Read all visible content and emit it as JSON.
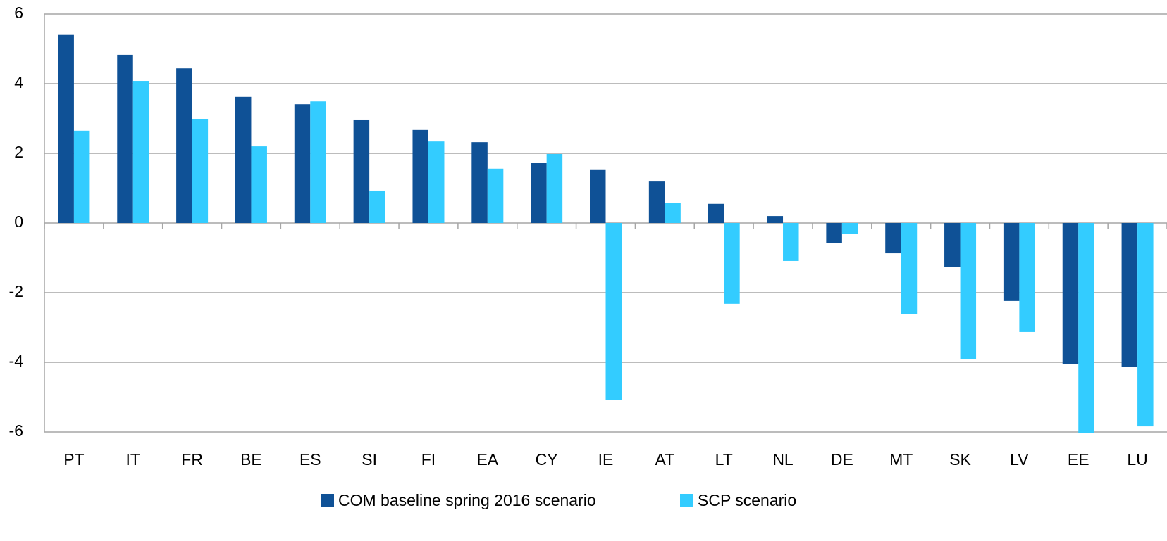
{
  "chart_data": {
    "type": "bar",
    "categories": [
      "PT",
      "IT",
      "FR",
      "BE",
      "ES",
      "SI",
      "FI",
      "EA",
      "CY",
      "IE",
      "AT",
      "LT",
      "NL",
      "DE",
      "MT",
      "SK",
      "LV",
      "EE",
      "LU"
    ],
    "series": [
      {
        "name": "COM baseline spring 2016 scenario",
        "color": "#0f5196",
        "values": [
          5.4,
          4.83,
          4.44,
          3.62,
          3.41,
          2.97,
          2.67,
          2.32,
          1.72,
          1.54,
          1.21,
          0.55,
          0.2,
          -0.57,
          -0.87,
          -1.27,
          -2.24,
          -4.06,
          -4.14
        ]
      },
      {
        "name": "SCP scenario",
        "color": "#33ccff",
        "values": [
          2.65,
          4.08,
          2.99,
          2.2,
          3.49,
          0.93,
          2.34,
          1.56,
          1.98,
          -5.09,
          0.57,
          -2.32,
          -1.09,
          -0.32,
          -2.61,
          -3.9,
          -3.13,
          -6.04,
          -5.84
        ]
      }
    ],
    "ylim": [
      -6,
      6
    ],
    "yticks": [
      -6,
      -4,
      -2,
      0,
      2,
      4,
      6
    ],
    "grid": true
  }
}
